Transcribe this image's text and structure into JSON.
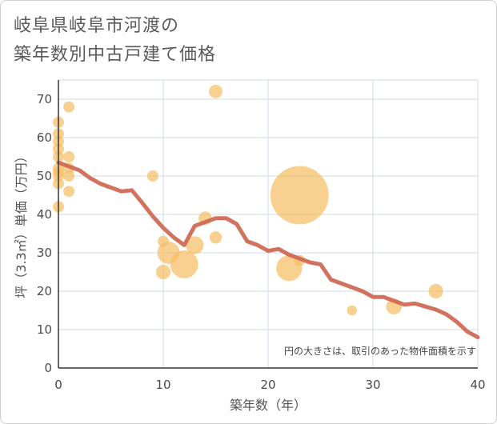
{
  "chart_data": {
    "type": "scatter+line",
    "title_line1": "岐阜県岐阜市河渡の",
    "title_line2": "築年数別中古戸建て価格",
    "xlabel": "築年数（年）",
    "ylabel": "坪（3.3㎡）単価（万円）",
    "xlim": [
      0,
      40
    ],
    "ylim": [
      0,
      75
    ],
    "xticks": [
      "0",
      "10",
      "20",
      "30",
      "40"
    ],
    "yticks": [
      "0",
      "10",
      "20",
      "30",
      "40",
      "50",
      "60",
      "70"
    ],
    "note": "円の大きさは、取引のあった物件面積を示す",
    "colors": {
      "bubble": "#f5c06a",
      "line": "#d06a55",
      "grid": "#cfdbe6"
    },
    "scatter": [
      {
        "x": 0,
        "y": 64,
        "size": 1
      },
      {
        "x": 0,
        "y": 61,
        "size": 1
      },
      {
        "x": 0,
        "y": 59,
        "size": 1
      },
      {
        "x": 0,
        "y": 57,
        "size": 1
      },
      {
        "x": 0,
        "y": 55,
        "size": 1
      },
      {
        "x": 0,
        "y": 52,
        "size": 1
      },
      {
        "x": 0,
        "y": 51,
        "size": 1
      },
      {
        "x": 0,
        "y": 50,
        "size": 1
      },
      {
        "x": 0,
        "y": 48,
        "size": 1
      },
      {
        "x": 0,
        "y": 42,
        "size": 1
      },
      {
        "x": 1,
        "y": 68,
        "size": 1
      },
      {
        "x": 1,
        "y": 55,
        "size": 1
      },
      {
        "x": 1,
        "y": 52,
        "size": 1
      },
      {
        "x": 1,
        "y": 50,
        "size": 1
      },
      {
        "x": 1,
        "y": 46,
        "size": 1
      },
      {
        "x": 9,
        "y": 50,
        "size": 1
      },
      {
        "x": 10,
        "y": 33,
        "size": 1
      },
      {
        "x": 10,
        "y": 25,
        "size": 1.3
      },
      {
        "x": 10.5,
        "y": 30,
        "size": 2
      },
      {
        "x": 12,
        "y": 27,
        "size": 2.5
      },
      {
        "x": 13,
        "y": 32,
        "size": 1.6
      },
      {
        "x": 14,
        "y": 39,
        "size": 1.2
      },
      {
        "x": 15,
        "y": 72,
        "size": 1.2
      },
      {
        "x": 15,
        "y": 34,
        "size": 1.1
      },
      {
        "x": 22,
        "y": 26,
        "size": 2.3
      },
      {
        "x": 23,
        "y": 45,
        "size": 5.2
      },
      {
        "x": 23,
        "y": 28,
        "size": 1
      },
      {
        "x": 28,
        "y": 15,
        "size": 0.9
      },
      {
        "x": 32,
        "y": 16,
        "size": 1.4
      },
      {
        "x": 36,
        "y": 20,
        "size": 1.3
      }
    ],
    "line": [
      {
        "x": 0,
        "y": 53.5
      },
      {
        "x": 2,
        "y": 51.5
      },
      {
        "x": 3,
        "y": 49.5
      },
      {
        "x": 4,
        "y": 48
      },
      {
        "x": 5,
        "y": 47
      },
      {
        "x": 6,
        "y": 46
      },
      {
        "x": 7,
        "y": 46.3
      },
      {
        "x": 8,
        "y": 43
      },
      {
        "x": 9,
        "y": 39.5
      },
      {
        "x": 10,
        "y": 36.5
      },
      {
        "x": 11,
        "y": 34
      },
      {
        "x": 12,
        "y": 32
      },
      {
        "x": 13,
        "y": 37
      },
      {
        "x": 14,
        "y": 38
      },
      {
        "x": 15,
        "y": 39
      },
      {
        "x": 16,
        "y": 39
      },
      {
        "x": 17,
        "y": 37.5
      },
      {
        "x": 18,
        "y": 33
      },
      {
        "x": 19,
        "y": 32
      },
      {
        "x": 20,
        "y": 30.5
      },
      {
        "x": 21,
        "y": 31
      },
      {
        "x": 22,
        "y": 29.5
      },
      {
        "x": 23,
        "y": 28.5
      },
      {
        "x": 24,
        "y": 27.5
      },
      {
        "x": 25,
        "y": 27
      },
      {
        "x": 26,
        "y": 23
      },
      {
        "x": 27,
        "y": 22
      },
      {
        "x": 28,
        "y": 21
      },
      {
        "x": 29,
        "y": 20
      },
      {
        "x": 30,
        "y": 18.5
      },
      {
        "x": 31,
        "y": 18.5
      },
      {
        "x": 32,
        "y": 17.5
      },
      {
        "x": 33,
        "y": 16.5
      },
      {
        "x": 34,
        "y": 16.8
      },
      {
        "x": 35,
        "y": 16
      },
      {
        "x": 36,
        "y": 15.2
      },
      {
        "x": 37,
        "y": 14
      },
      {
        "x": 38,
        "y": 12
      },
      {
        "x": 39,
        "y": 9.5
      },
      {
        "x": 40,
        "y": 8
      }
    ]
  }
}
